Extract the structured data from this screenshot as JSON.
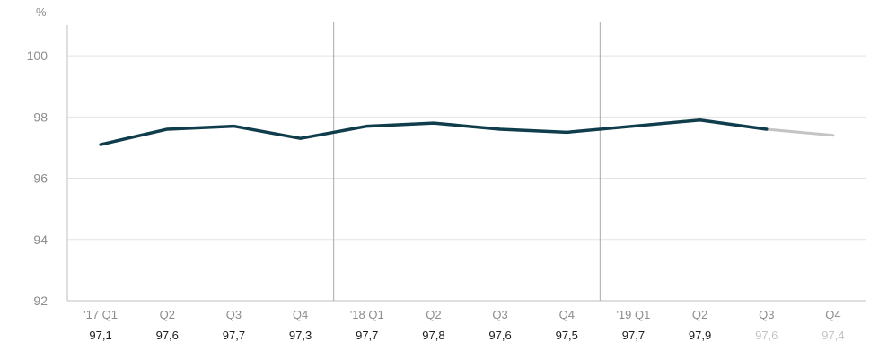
{
  "chart_data": {
    "type": "line",
    "unit": "%",
    "ylim": [
      92,
      101
    ],
    "yticks": [
      92,
      94,
      96,
      98,
      100
    ],
    "grid": true,
    "categories": [
      "'17 Q1",
      "Q2",
      "Q3",
      "Q4",
      "'18 Q1",
      "Q2",
      "Q3",
      "Q4",
      "'19 Q1",
      "Q2",
      "Q3",
      "Q4"
    ],
    "values": [
      97.1,
      97.6,
      97.7,
      97.3,
      97.7,
      97.8,
      97.6,
      97.5,
      97.7,
      97.9,
      97.6,
      97.4
    ],
    "value_labels": [
      "97,1",
      "97,6",
      "97,7",
      "97,3",
      "97,7",
      "97,8",
      "97,6",
      "97,5",
      "97,7",
      "97,9",
      "97,6",
      "97,4"
    ],
    "estimated_from_index": 10,
    "year_separators_after_index": [
      3,
      7
    ],
    "colors": {
      "actual": "#0f3d4c",
      "estimated": "#c4c4c4",
      "grid": "#e3e3e3",
      "axis": "#bfbfbf",
      "separator": "#a9a9a9",
      "tick_text": "#8c8c8c",
      "value_text": "#1a1a1a",
      "value_text_estimated": "#c4c4c4"
    }
  }
}
